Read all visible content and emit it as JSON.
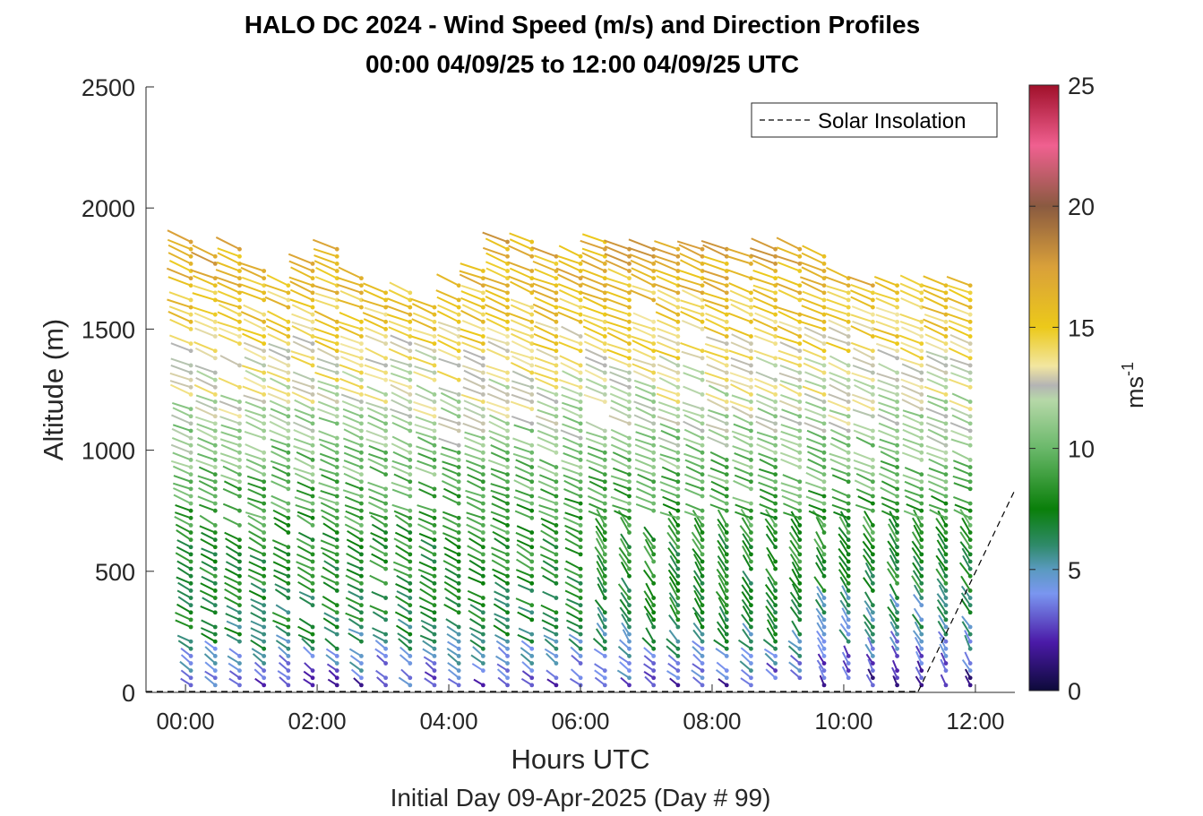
{
  "chart_data": {
    "type": "wind-barb-profile",
    "title": "HALO DC 2024 - Wind Speed (m/s) and Direction Profiles",
    "subtitle": "00:00 04/09/25 to 12:00 04/09/25  UTC",
    "xlabel": "Hours UTC",
    "ylabel": "Altitude (m)",
    "footer": "Initial Day 09-Apr-2025 (Day # 99)",
    "xlim": [
      -0.6,
      12.6
    ],
    "ylim": [
      0,
      2500
    ],
    "x_ticks": [
      0,
      2,
      4,
      6,
      8,
      10,
      12
    ],
    "x_tick_labels": [
      "00:00",
      "02:00",
      "04:00",
      "06:00",
      "08:00",
      "10:00",
      "12:00"
    ],
    "y_ticks": [
      0,
      500,
      1000,
      1500,
      2000,
      2500
    ],
    "y_tick_labels": [
      "0",
      "500",
      "1000",
      "1500",
      "2000",
      "2500"
    ],
    "legend": {
      "entries": [
        "Solar Insolation"
      ],
      "placement": "top-right",
      "style": "dashed"
    },
    "colorbar": {
      "label": "ms-1",
      "range": [
        0,
        25
      ],
      "ticks": [
        "0",
        "5",
        "10",
        "15",
        "20",
        "25"
      ],
      "stops": [
        {
          "v": 0,
          "c": "#0d0a3a"
        },
        {
          "v": 2,
          "c": "#4b1aa8"
        },
        {
          "v": 4,
          "c": "#7a96f0"
        },
        {
          "v": 5,
          "c": "#5a9ac0"
        },
        {
          "v": 6,
          "c": "#2f8a6a"
        },
        {
          "v": 7.5,
          "c": "#0a7f0a"
        },
        {
          "v": 10,
          "c": "#6ab86a"
        },
        {
          "v": 12,
          "c": "#b6d8a8"
        },
        {
          "v": 12.6,
          "c": "#b4b4b4"
        },
        {
          "v": 13.4,
          "c": "#f2e6a0"
        },
        {
          "v": 15,
          "c": "#ecc91a"
        },
        {
          "v": 17.5,
          "c": "#d9a03a"
        },
        {
          "v": 20,
          "c": "#8a5a40"
        },
        {
          "v": 22.5,
          "c": "#f06090"
        },
        {
          "v": 25,
          "c": "#a0102a"
        }
      ]
    },
    "profile_times_h": [
      0,
      0.37,
      0.74,
      1.11,
      1.48,
      1.85,
      2.22,
      2.59,
      2.96,
      3.33,
      3.7,
      4.07,
      4.44,
      4.81,
      5.18,
      5.55,
      5.92,
      6.29,
      6.66,
      7.03,
      7.4,
      7.77,
      8.14,
      8.51,
      8.88,
      9.25,
      9.62,
      9.99,
      10.36,
      10.73,
      11.1,
      11.47,
      11.84
    ],
    "profile_tops_m": [
      1860,
      1850,
      1830,
      1760,
      1690,
      1780,
      1830,
      1720,
      1680,
      1660,
      1600,
      1700,
      1760,
      1880,
      1860,
      1820,
      1830,
      1860,
      1840,
      1840,
      1860,
      1850,
      1840,
      1820,
      1840,
      1850,
      1820,
      1760,
      1680,
      1700,
      1700,
      1720,
      1700
    ],
    "gate_spacing_m": 30,
    "speed_profile_ms": [
      {
        "z": 30,
        "v": 3.0
      },
      {
        "z": 150,
        "v": 5.0
      },
      {
        "z": 300,
        "v": 7.0
      },
      {
        "z": 600,
        "v": 8.0
      },
      {
        "z": 900,
        "v": 10.0
      },
      {
        "z": 1200,
        "v": 12.5
      },
      {
        "z": 1500,
        "v": 14.5
      },
      {
        "z": 1800,
        "v": 16.5
      }
    ],
    "direction_note": "westerly to northwesterly flow, veering to northerly near surface after 10:00"
  }
}
